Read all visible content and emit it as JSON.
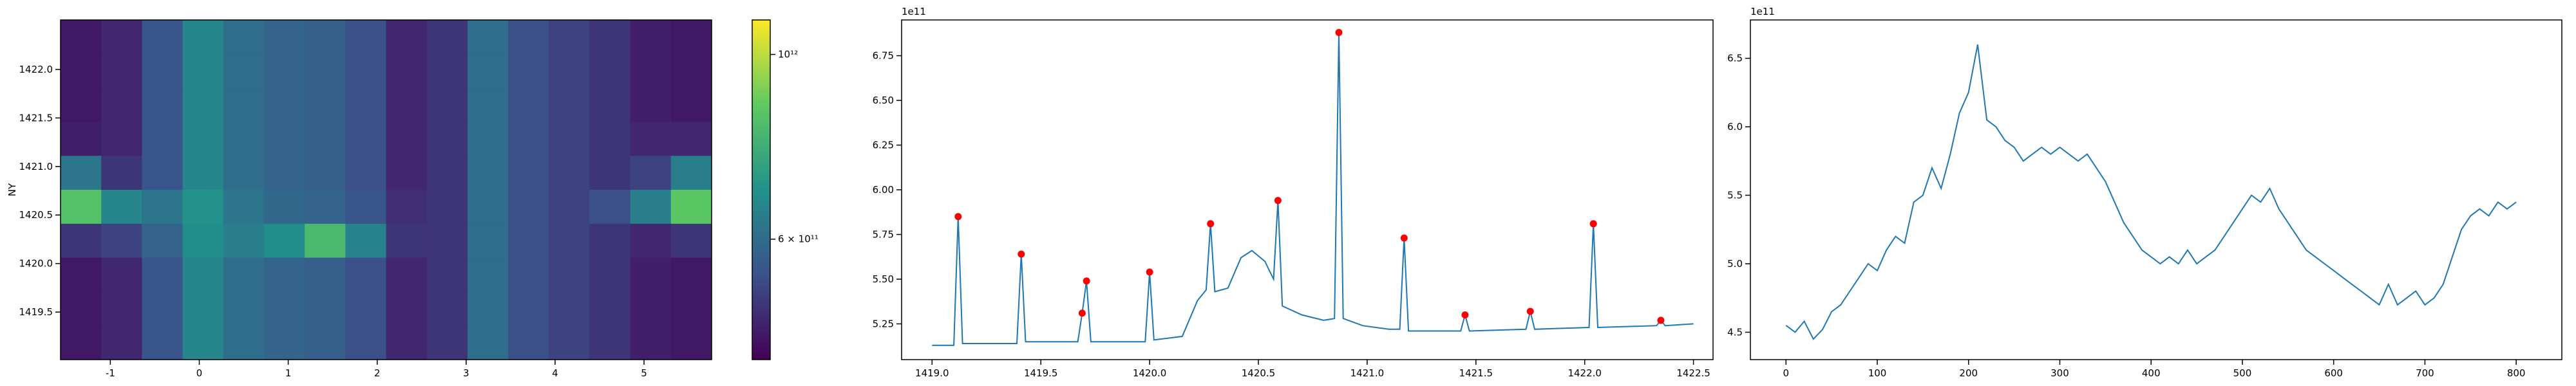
{
  "chart_data": [
    {
      "type": "heatmap",
      "ylabel": "NY",
      "xlim": [
        -1.56,
        5.76
      ],
      "ylim": [
        1419.01,
        1422.51
      ],
      "xticks": [
        -1,
        0,
        1,
        2,
        3,
        4,
        5
      ],
      "yticks": [
        {
          "value": 1419.5,
          "label": "1419.5"
        },
        {
          "value": 1420,
          "label": "1420.0"
        },
        {
          "value": 1420.5,
          "label": "1420.5"
        },
        {
          "value": 1421,
          "label": "1421.0"
        },
        {
          "value": 1421.5,
          "label": "1421.5"
        },
        {
          "value": 1422,
          "label": "1422.0"
        }
      ],
      "z": [
        [
          460000000000.0,
          480000000000.0,
          550000000000.0,
          660000000000.0,
          600000000000.0,
          580000000000.0,
          570000000000.0,
          540000000000.0,
          480000000000.0,
          500000000000.0,
          600000000000.0,
          540000000000.0,
          520000000000.0,
          500000000000.0,
          470000000000.0,
          460000000000.0
        ],
        [
          460000000000.0,
          480000000000.0,
          550000000000.0,
          660000000000.0,
          600000000000.0,
          580000000000.0,
          570000000000.0,
          540000000000.0,
          480000000000.0,
          500000000000.0,
          600000000000.0,
          540000000000.0,
          520000000000.0,
          500000000000.0,
          470000000000.0,
          460000000000.0
        ],
        [
          460000000000.0,
          480000000000.0,
          550000000000.0,
          660000000000.0,
          600000000000.0,
          580000000000.0,
          570000000000.0,
          540000000000.0,
          480000000000.0,
          500000000000.0,
          600000000000.0,
          540000000000.0,
          520000000000.0,
          500000000000.0,
          470000000000.0,
          460000000000.0
        ],
        [
          470000000000.0,
          480000000000.0,
          550000000000.0,
          660000000000.0,
          600000000000.0,
          580000000000.0,
          570000000000.0,
          540000000000.0,
          480000000000.0,
          500000000000.0,
          600000000000.0,
          540000000000.0,
          520000000000.0,
          500000000000.0,
          480000000000.0,
          480000000000.0
        ],
        [
          620000000000.0,
          500000000000.0,
          550000000000.0,
          660000000000.0,
          600000000000.0,
          580000000000.0,
          570000000000.0,
          540000000000.0,
          480000000000.0,
          500000000000.0,
          600000000000.0,
          540000000000.0,
          520000000000.0,
          500000000000.0,
          520000000000.0,
          640000000000.0
        ],
        [
          840000000000.0,
          660000000000.0,
          620000000000.0,
          690000000000.0,
          620000000000.0,
          590000000000.0,
          580000000000.0,
          550000000000.0,
          490000000000.0,
          500000000000.0,
          600000000000.0,
          540000000000.0,
          520000000000.0,
          540000000000.0,
          640000000000.0,
          860000000000.0
        ],
        [
          500000000000.0,
          520000000000.0,
          580000000000.0,
          680000000000.0,
          640000000000.0,
          680000000000.0,
          810000000000.0,
          650000000000.0,
          500000000000.0,
          500000000000.0,
          600000000000.0,
          540000000000.0,
          520000000000.0,
          500000000000.0,
          480000000000.0,
          500000000000.0
        ],
        [
          460000000000.0,
          480000000000.0,
          550000000000.0,
          660000000000.0,
          600000000000.0,
          580000000000.0,
          570000000000.0,
          540000000000.0,
          480000000000.0,
          500000000000.0,
          600000000000.0,
          540000000000.0,
          520000000000.0,
          500000000000.0,
          470000000000.0,
          460000000000.0
        ],
        [
          460000000000.0,
          480000000000.0,
          550000000000.0,
          660000000000.0,
          600000000000.0,
          580000000000.0,
          570000000000.0,
          540000000000.0,
          480000000000.0,
          500000000000.0,
          600000000000.0,
          540000000000.0,
          520000000000.0,
          500000000000.0,
          470000000000.0,
          460000000000.0
        ],
        [
          460000000000.0,
          480000000000.0,
          550000000000.0,
          660000000000.0,
          600000000000.0,
          580000000000.0,
          570000000000.0,
          540000000000.0,
          480000000000.0,
          500000000000.0,
          600000000000.0,
          540000000000.0,
          520000000000.0,
          500000000000.0,
          470000000000.0,
          460000000000.0
        ]
      ],
      "colorbar": {
        "scale": "log",
        "lim": [
          430000000000.0,
          1100000000000.0
        ],
        "ticks": [
          {
            "value": 600000000000.0,
            "label": "6 × 10¹¹"
          },
          {
            "value": 1000000000000.0,
            "label": "10¹²"
          }
        ]
      }
    },
    {
      "type": "line",
      "offset_text": "1e11",
      "xlim": [
        1418.86,
        1422.59
      ],
      "ylim": [
        5.05,
        6.95
      ],
      "xticks": [
        {
          "value": 1419,
          "label": "1419.0"
        },
        1419.5,
        {
          "value": 1420,
          "label": "1420.0"
        },
        1420.5,
        {
          "value": 1421,
          "label": "1421.0"
        },
        1421.5,
        {
          "value": 1422,
          "label": "1422.0"
        },
        1422.5
      ],
      "yticks": [
        5.25,
        {
          "value": 5.5,
          "label": "5.50"
        },
        5.75,
        {
          "value": 6,
          "label": "6.00"
        },
        6.25,
        {
          "value": 6.5,
          "label": "6.50"
        },
        6.75
      ],
      "series": [
        {
          "color": "#1f77b4",
          "x": [
            1419.0,
            1419.1,
            1419.12,
            1419.14,
            1419.39,
            1419.41,
            1419.43,
            1419.67,
            1419.69,
            1419.71,
            1419.73,
            1419.98,
            1420.0,
            1420.02,
            1420.15,
            1420.22,
            1420.26,
            1420.28,
            1420.3,
            1420.36,
            1420.42,
            1420.47,
            1420.53,
            1420.57,
            1420.59,
            1420.61,
            1420.7,
            1420.8,
            1420.85,
            1420.87,
            1420.89,
            1420.98,
            1421.1,
            1421.15,
            1421.17,
            1421.19,
            1421.43,
            1421.45,
            1421.47,
            1421.73,
            1421.75,
            1421.77,
            1422.02,
            1422.04,
            1422.06,
            1422.33,
            1422.35,
            1422.37,
            1422.5
          ],
          "values": [
            5.13,
            5.13,
            5.85,
            5.14,
            5.14,
            5.64,
            5.15,
            5.15,
            5.31,
            5.49,
            5.15,
            5.15,
            5.54,
            5.16,
            5.18,
            5.38,
            5.44,
            5.81,
            5.43,
            5.45,
            5.62,
            5.66,
            5.6,
            5.5,
            5.94,
            5.35,
            5.3,
            5.27,
            5.28,
            6.88,
            5.28,
            5.24,
            5.22,
            5.22,
            5.73,
            5.21,
            5.21,
            5.3,
            5.21,
            5.22,
            5.32,
            5.22,
            5.23,
            5.81,
            5.23,
            5.24,
            5.27,
            5.24,
            5.25
          ]
        }
      ],
      "peaks": {
        "color": "#ff0000",
        "x": [
          1419.12,
          1419.41,
          1419.69,
          1419.71,
          1420.0,
          1420.28,
          1420.59,
          1420.87,
          1421.17,
          1421.45,
          1421.75,
          1422.04,
          1422.35
        ],
        "values": [
          5.85,
          5.64,
          5.31,
          5.49,
          5.54,
          5.81,
          5.94,
          6.88,
          5.73,
          5.3,
          5.32,
          5.81,
          5.27
        ]
      }
    },
    {
      "type": "line",
      "offset_text": "1e11",
      "xlim": [
        -39,
        850
      ],
      "ylim": [
        4.3,
        6.78
      ],
      "xticks": [
        0,
        100,
        200,
        300,
        400,
        500,
        600,
        700,
        800
      ],
      "yticks": [
        4.5,
        {
          "value": 5,
          "label": "5.0"
        },
        5.5,
        {
          "value": 6,
          "label": "6.0"
        },
        6.5
      ],
      "series": [
        {
          "color": "#1f77b4",
          "x": [
            0,
            10,
            20,
            30,
            40,
            50,
            60,
            70,
            80,
            90,
            100,
            110,
            120,
            130,
            140,
            150,
            160,
            170,
            180,
            190,
            200,
            210,
            220,
            230,
            240,
            250,
            260,
            270,
            280,
            290,
            300,
            310,
            320,
            330,
            340,
            350,
            360,
            370,
            380,
            390,
            400,
            410,
            420,
            430,
            440,
            450,
            460,
            470,
            480,
            490,
            500,
            510,
            520,
            530,
            540,
            550,
            560,
            570,
            580,
            590,
            600,
            610,
            620,
            630,
            640,
            650,
            660,
            670,
            680,
            690,
            700,
            710,
            720,
            730,
            740,
            750,
            760,
            770,
            780,
            790,
            800
          ],
          "values": [
            4.55,
            4.5,
            4.58,
            4.45,
            4.52,
            4.65,
            4.7,
            4.8,
            4.9,
            5.0,
            4.95,
            5.1,
            5.2,
            5.15,
            5.45,
            5.5,
            5.7,
            5.55,
            5.8,
            6.1,
            6.25,
            6.6,
            6.05,
            6.0,
            5.9,
            5.85,
            5.75,
            5.8,
            5.85,
            5.8,
            5.85,
            5.8,
            5.75,
            5.8,
            5.7,
            5.6,
            5.45,
            5.3,
            5.2,
            5.1,
            5.05,
            5.0,
            5.05,
            5.0,
            5.1,
            5.0,
            5.05,
            5.1,
            5.2,
            5.3,
            5.4,
            5.5,
            5.45,
            5.55,
            5.4,
            5.3,
            5.2,
            5.1,
            5.05,
            5.0,
            4.95,
            4.9,
            4.85,
            4.8,
            4.75,
            4.7,
            4.85,
            4.7,
            4.75,
            4.8,
            4.7,
            4.75,
            4.85,
            5.05,
            5.25,
            5.35,
            5.4,
            5.35,
            5.45,
            5.4,
            5.45
          ]
        }
      ]
    }
  ]
}
